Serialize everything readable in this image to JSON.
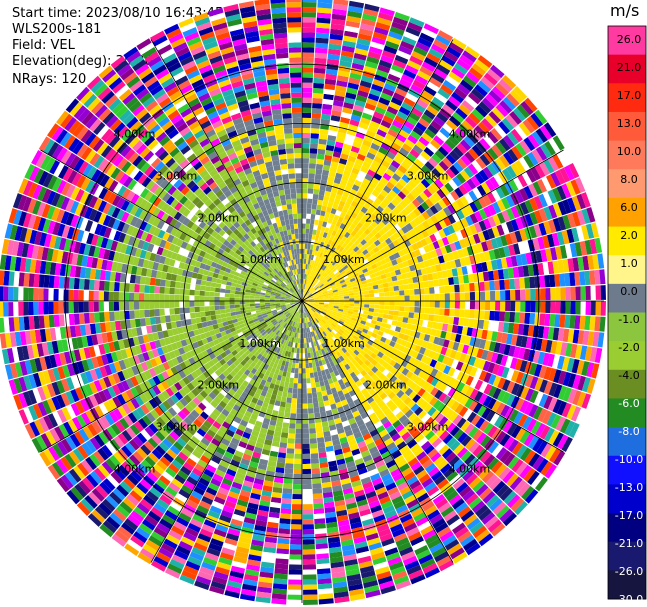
{
  "header": {
    "start_time": "Start time: 2023/08/10 16:43:45",
    "instrument": "WLS200s-181",
    "field": "Field: VEL",
    "elevation": "Elevation(deg): 35.30",
    "nrays": "NRays: 120"
  },
  "chart_data": {
    "type": "heatmap",
    "projection": "polar-ppi",
    "unit": "m/s",
    "ring_labels": [
      "1.00km",
      "2.00km",
      "3.00km",
      "4.00km"
    ],
    "ring_ranges_km": [
      1,
      2,
      3,
      4
    ],
    "max_range_km": 5.1,
    "nrays": 120,
    "spoke_step_deg": 30,
    "colorbar": {
      "ticks": [
        "26.0",
        "21.0",
        "17.0",
        "13.0",
        "10.0",
        "8.0",
        "6.0",
        "2.0",
        "1.0",
        "0.0",
        "-1.0",
        "-2.0",
        "-4.0",
        "-6.0",
        "-8.0",
        "-10.0",
        "-13.0",
        "-17.0",
        "-21.0",
        "-26.0",
        "-30.0"
      ],
      "colors": [
        "#ff3aa0",
        "#e8002a",
        "#ff2a10",
        "#ff5a3a",
        "#ff7a5a",
        "#ff9a70",
        "#ffa100",
        "#ffea00",
        "#fff58a",
        "#6e7b8c",
        "#8cc63e",
        "#9acd32",
        "#6b8e23",
        "#228b22",
        "#1e6ee0",
        "#1010ff",
        "#0000cd",
        "#000080",
        "#191970",
        "#151540"
      ]
    },
    "colors": {
      "near_positive": "#ffe500",
      "near_negative": "#9acd32",
      "near_zero": "#708090",
      "noise": [
        "#ff1493",
        "#ff69b4",
        "#1e90ff",
        "#0000cd",
        "#ff4500",
        "#ffd700",
        "#32cd32",
        "#8b008b",
        "#00008b",
        "#ff00ff",
        "#20b2aa",
        "#ff6347",
        "#191970",
        "#9400d3",
        "#228b22",
        "#ffa500"
      ]
    }
  }
}
